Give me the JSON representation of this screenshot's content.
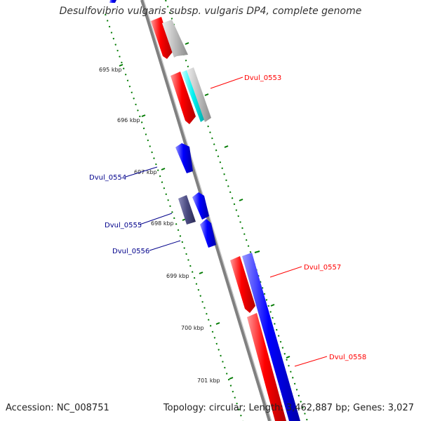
{
  "title": "Desulfovibrio vulgaris subsp. vulgaris DP4, complete genome",
  "footer": {
    "accession": "Accession: NC_008751",
    "summary": "Topology: circular; Length: 3,462,887 bp; Genes: 3,027"
  },
  "kbp_labels": [
    "695 kbp",
    "696 kbp",
    "697 kbp",
    "698 kbp",
    "699 kbp",
    "700 kbp",
    "701 kbp"
  ],
  "gene_labels": [
    "Dvul_0553",
    "Dvul_0554",
    "Dvul_0555",
    "Dvul_0556",
    "Dvul_0557",
    "Dvul_0558"
  ],
  "colors": {
    "red": "#ff0000",
    "blue": "#0000ff",
    "navy": "#00008b",
    "grey": "#b4b4b4",
    "cyan": "#00ffff",
    "purple": "#484878",
    "ticks": "#007a00",
    "backbone": "#808080"
  }
}
